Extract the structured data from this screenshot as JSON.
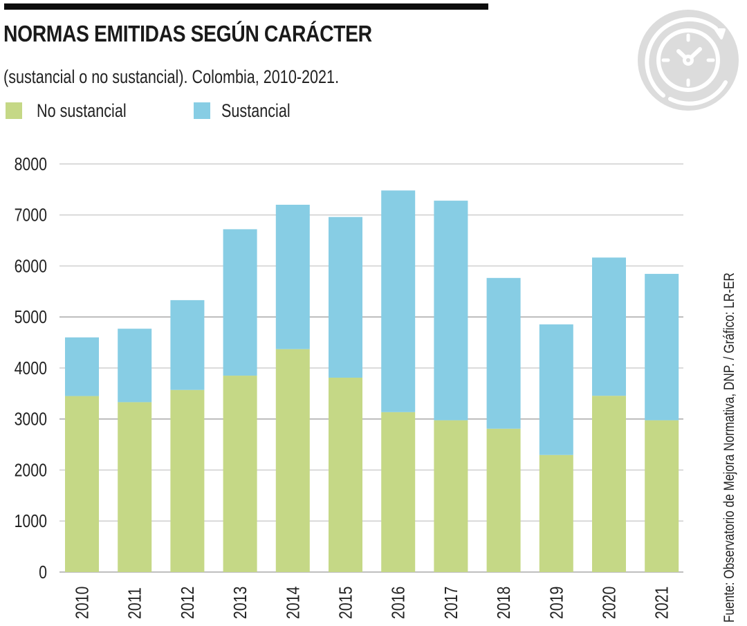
{
  "header": {
    "title": "NORMAS EMITIDAS SEGÚN CARÁCTER",
    "subtitle": "(sustancial o no sustancial). Colombia, 2010-2021.",
    "badge_icon": "clock-refresh-icon"
  },
  "legend": {
    "items": [
      {
        "label": "No sustancial",
        "color": "#c5d886"
      },
      {
        "label": "Sustancial",
        "color": "#87cde4"
      }
    ]
  },
  "source": "Fuente: Observatorio de Mejora Normativa, DNP. / Gráfico: LR-ER",
  "colors": {
    "no_sustancial": "#c5d886",
    "sustancial": "#87cde4",
    "gridline": "#cfcfcf",
    "gridline_major": "#a8a8a8",
    "badge": "#dcdcdc"
  },
  "chart_data": {
    "type": "bar",
    "stacked": true,
    "title": "NORMAS EMITIDAS SEGÚN CARÁCTER",
    "subtitle": "(sustancial o no sustancial). Colombia, 2010-2021.",
    "xlabel": "",
    "ylabel": "",
    "categories": [
      "2010",
      "2011",
      "2012",
      "2013",
      "2014",
      "2015",
      "2016",
      "2017",
      "2018",
      "2019",
      "2020",
      "2021"
    ],
    "series": [
      {
        "name": "No sustancial",
        "values": [
          3450,
          3330,
          3570,
          3850,
          4370,
          3810,
          3135,
          2975,
          2810,
          2295,
          3455,
          2975
        ]
      },
      {
        "name": "Sustancial",
        "values": [
          1150,
          1440,
          1760,
          2870,
          2830,
          3150,
          4345,
          4305,
          2955,
          2560,
          2710,
          2870
        ]
      }
    ],
    "ylim": [
      0,
      8000
    ],
    "yticks": [
      "0",
      "1000",
      "2000",
      "3000",
      "4000",
      "5000",
      "6000",
      "7000",
      "8000"
    ],
    "grid": true,
    "legend_position": "top-left"
  }
}
